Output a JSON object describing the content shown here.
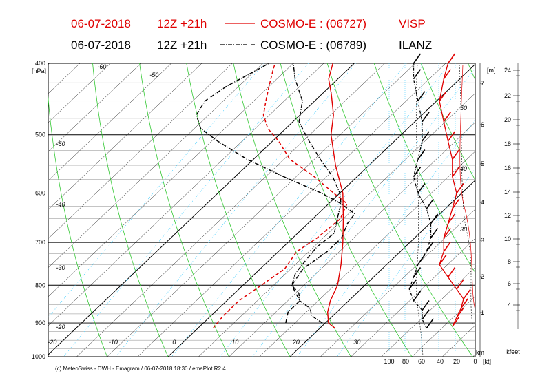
{
  "chart_data": {
    "type": "line",
    "title_lines": [
      {
        "date": "06-07-2018",
        "run": "12Z +21h",
        "model": "COSMO-E : (06727)",
        "station": "VISP",
        "color": "#e00000",
        "style": "solid"
      },
      {
        "date": "06-07-2018",
        "run": "12Z +21h",
        "model": "COSMO-E : (06789)",
        "station": "ILANZ",
        "color": "#000000",
        "style": "dashdot"
      }
    ],
    "y_unit": "[hPa]",
    "pressure_ticks": [
      "400",
      "500",
      "600",
      "700",
      "800",
      "900",
      "1000"
    ],
    "temp_ticks": [
      -60,
      -50,
      -40,
      -30,
      -20,
      -10,
      0,
      10,
      20,
      30
    ],
    "temp_label_values": [
      -60,
      -50,
      -40,
      -30,
      -20,
      -10,
      0,
      10,
      20,
      30
    ],
    "left_temp_labels": [
      -60,
      -50,
      -40,
      -30,
      -20
    ],
    "height_unit": "[m]",
    "height_ticks": [
      "7",
      "6",
      "5",
      "4",
      "3",
      "2",
      "1"
    ],
    "wind_axis_labels": [
      "100",
      "80",
      "60",
      "40",
      "20",
      "0"
    ],
    "wind_unit": "[kt]",
    "km_label": "km",
    "kfeet_label": "kfeet",
    "kfeet_ticks": [
      "24",
      "22",
      "20",
      "18",
      "16",
      "14",
      "12",
      "10",
      "8",
      "6",
      "4"
    ],
    "mixing_ratio_labels": [
      "50",
      "40",
      "30"
    ],
    "plim": [
      400,
      1000
    ],
    "series": [
      {
        "name": "VISP",
        "kind": "temperature",
        "color": "#e00000",
        "p": [
          915,
          900,
          870,
          840,
          800,
          750,
          700,
          650,
          600,
          550,
          500,
          470,
          440,
          420,
          400
        ],
        "t": [
          22.5,
          20.5,
          18.5,
          17,
          15.5,
          12.5,
          9,
          5,
          0.5,
          -5.5,
          -11.5,
          -14.5,
          -18.5,
          -21.5,
          -23.5
        ]
      },
      {
        "name": "VISP",
        "kind": "dewpoint",
        "color": "#e00000",
        "p": [
          915,
          880,
          840,
          800,
          760,
          720,
          690,
          650,
          620,
          600,
          570,
          540,
          510,
          490,
          470,
          450,
          430,
          410,
          400
        ],
        "t": [
          2.5,
          2,
          2,
          3,
          4,
          3,
          4,
          4.5,
          3,
          -1,
          -7,
          -14,
          -19,
          -23,
          -26,
          -28,
          -30,
          -32,
          -33
        ]
      },
      {
        "name": "ILANZ",
        "kind": "temperature",
        "color": "#000000",
        "p": [
          900,
          880,
          860,
          840,
          820,
          800,
          770,
          740,
          710,
          680,
          650,
          620,
          600,
          570,
          540,
          510,
          480,
          450,
          420,
          400
        ],
        "t": [
          19.5,
          16.5,
          15,
          12,
          10.5,
          8,
          6.5,
          6,
          5.5,
          6,
          4,
          2,
          0,
          -4,
          -9,
          -14,
          -19,
          -22,
          -27,
          -30
        ]
      },
      {
        "name": "ILANZ",
        "kind": "dewpoint",
        "color": "#000000",
        "p": [
          900,
          870,
          840,
          820,
          800,
          780,
          760,
          720,
          690,
          660,
          640,
          620,
          600,
          570,
          540,
          510,
          490,
          470,
          450,
          430,
          410,
          400
        ],
        "t": [
          13.5,
          12,
          12,
          10,
          8,
          7.5,
          7,
          8,
          8,
          6.5,
          6,
          2,
          -3,
          -12,
          -21,
          -29,
          -34,
          -37,
          -38,
          -37,
          -35,
          -34
        ]
      }
    ],
    "wind_profiles": [
      {
        "name": "VISP",
        "color": "#e00000",
        "p": [
          910,
          885,
          860,
          835,
          810,
          780,
          750,
          720,
          690,
          660,
          630,
          600,
          570,
          540,
          510,
          480,
          450,
          420,
          400
        ],
        "speed": [
          25,
          20,
          15,
          12,
          20,
          30,
          40,
          35,
          35,
          30,
          25,
          20,
          25,
          25,
          30,
          35,
          40,
          35,
          30
        ]
      },
      {
        "name": "ILANZ",
        "color": "#000000",
        "p": [
          915,
          890,
          865,
          840,
          810,
          780,
          750,
          720,
          690,
          660,
          630,
          600,
          570,
          540,
          510,
          480,
          450,
          420,
          400
        ],
        "speed": [
          55,
          60,
          60,
          70,
          75,
          70,
          65,
          55,
          50,
          50,
          55,
          65,
          70,
          65,
          60,
          60,
          65,
          70,
          70
        ]
      }
    ],
    "footer": "(c) MeteoSwiss - DWH - Emagram / 06-07-2018  18:30 / emaPlot R2.4"
  }
}
